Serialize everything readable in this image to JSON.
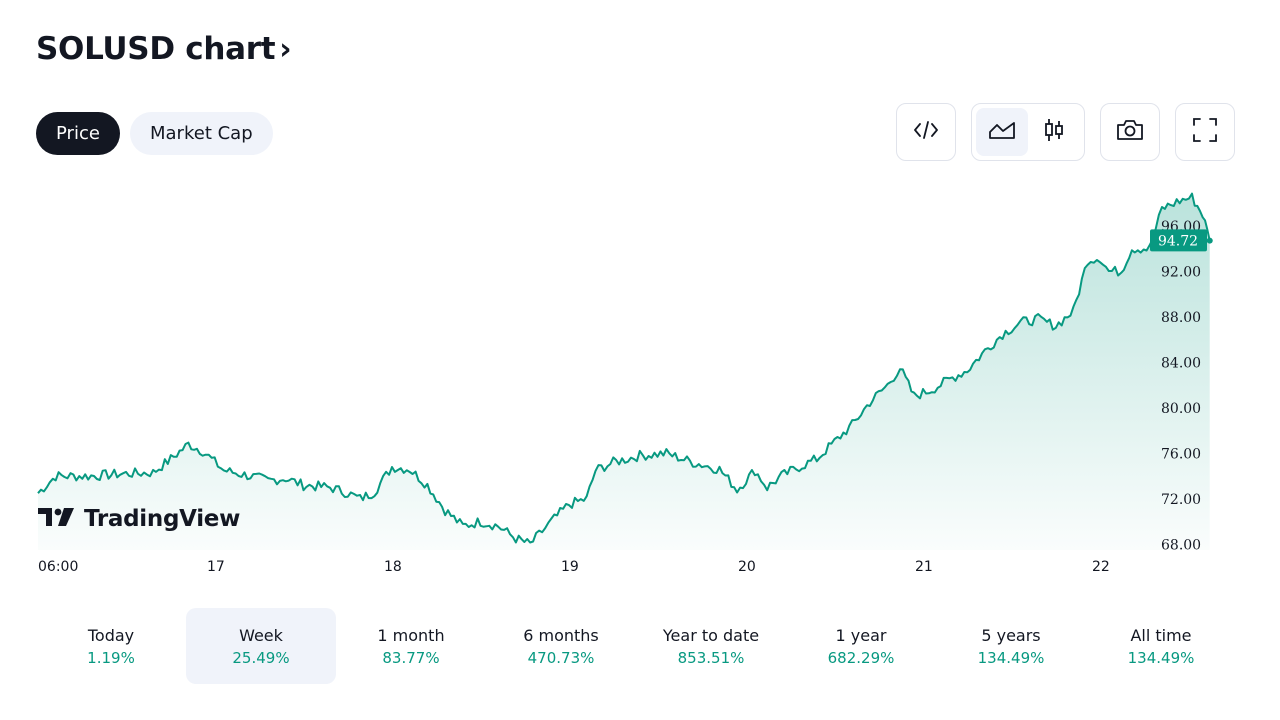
{
  "header": {
    "title": "SOLUSD chart",
    "chevron": "›"
  },
  "tabs": [
    {
      "label": "Price",
      "active": true
    },
    {
      "label": "Market Cap",
      "active": false
    }
  ],
  "toolbar": {
    "icons": [
      "embed-code-icon",
      "area-chart-icon",
      "candlestick-chart-icon",
      "camera-icon",
      "fullscreen-icon"
    ],
    "active_icon": "area-chart-icon"
  },
  "brand": {
    "logo_text": "TradingView"
  },
  "chart_data": {
    "type": "area",
    "symbol": "SOLUSD",
    "x_ticks": [
      "06:00",
      "17",
      "18",
      "19",
      "20",
      "21",
      "22"
    ],
    "y_ticks": [
      "68.00",
      "72.00",
      "76.00",
      "80.00",
      "84.00",
      "88.00",
      "92.00",
      "96.00"
    ],
    "ylim": [
      67.5,
      99.5
    ],
    "last_price": "94.72",
    "line_color": "#089981",
    "points": [
      [
        0,
        72.5
      ],
      [
        0.1,
        74.0
      ],
      [
        0.3,
        74.0
      ],
      [
        0.48,
        74.2
      ],
      [
        0.65,
        74.3
      ],
      [
        0.75,
        75.5
      ],
      [
        0.85,
        76.8
      ],
      [
        0.93,
        76.2
      ],
      [
        1.05,
        74.5
      ],
      [
        1.2,
        74.0
      ],
      [
        1.3,
        73.6
      ],
      [
        1.4,
        73.8
      ],
      [
        1.5,
        73.2
      ],
      [
        1.65,
        73.0
      ],
      [
        1.75,
        72.5
      ],
      [
        1.82,
        72.0
      ],
      [
        1.9,
        72.6
      ],
      [
        2.0,
        74.8
      ],
      [
        2.1,
        74.6
      ],
      [
        2.2,
        73.2
      ],
      [
        2.3,
        71.0
      ],
      [
        2.4,
        69.6
      ],
      [
        2.5,
        70.0
      ],
      [
        2.6,
        69.6
      ],
      [
        2.7,
        68.5
      ],
      [
        2.78,
        68.0
      ],
      [
        2.9,
        70.0
      ],
      [
        3.0,
        71.5
      ],
      [
        3.1,
        72.0
      ],
      [
        3.15,
        74.5
      ],
      [
        3.25,
        75.2
      ],
      [
        3.4,
        75.8
      ],
      [
        3.55,
        76.0
      ],
      [
        3.7,
        75.2
      ],
      [
        3.85,
        74.6
      ],
      [
        3.95,
        72.8
      ],
      [
        4.05,
        74.5
      ],
      [
        4.12,
        73.0
      ],
      [
        4.2,
        74.0
      ],
      [
        4.3,
        74.8
      ],
      [
        4.4,
        75.5
      ],
      [
        4.5,
        77.0
      ],
      [
        4.6,
        78.5
      ],
      [
        4.7,
        80.5
      ],
      [
        4.8,
        82.0
      ],
      [
        4.87,
        83.5
      ],
      [
        4.95,
        81.0
      ],
      [
        5.05,
        81.6
      ],
      [
        5.15,
        82.5
      ],
      [
        5.25,
        83.3
      ],
      [
        5.35,
        85.0
      ],
      [
        5.45,
        86.5
      ],
      [
        5.55,
        87.5
      ],
      [
        5.65,
        87.8
      ],
      [
        5.75,
        87.2
      ],
      [
        5.85,
        88.5
      ],
      [
        5.93,
        93.0
      ],
      [
        6.0,
        93.2
      ],
      [
        6.05,
        92.0
      ],
      [
        6.12,
        92.0
      ],
      [
        6.18,
        94.0
      ],
      [
        6.28,
        94.0
      ],
      [
        6.35,
        97.5
      ],
      [
        6.45,
        98.2
      ],
      [
        6.52,
        98.5
      ],
      [
        6.58,
        97.0
      ],
      [
        6.62,
        94.7
      ]
    ]
  },
  "periods": [
    {
      "label": "Today",
      "value": "1.19%",
      "active": false
    },
    {
      "label": "Week",
      "value": "25.49%",
      "active": true
    },
    {
      "label": "1 month",
      "value": "83.77%",
      "active": false
    },
    {
      "label": "6 months",
      "value": "470.73%",
      "active": false
    },
    {
      "label": "Year to date",
      "value": "853.51%",
      "active": false
    },
    {
      "label": "1 year",
      "value": "682.29%",
      "active": false
    },
    {
      "label": "5 years",
      "value": "134.49%",
      "active": false
    },
    {
      "label": "All time",
      "value": "134.49%",
      "active": false
    }
  ]
}
